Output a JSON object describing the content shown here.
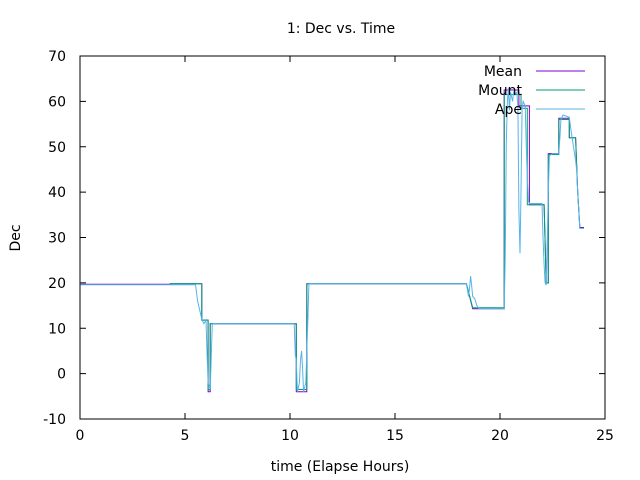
{
  "chart_data": {
    "type": "line",
    "title": "1: Dec vs. Time",
    "xlabel": "time (Elapse Hours)",
    "ylabel": "Dec",
    "xlim": [
      0,
      25
    ],
    "ylim": [
      -10,
      70
    ],
    "xticks": [
      0,
      5,
      10,
      15,
      20,
      25
    ],
    "yticks": [
      -10,
      0,
      10,
      20,
      30,
      40,
      50,
      60,
      70
    ],
    "grid": false,
    "legend_position": "top-right",
    "series": [
      {
        "name": "Mean",
        "color": "#7c00c8",
        "points": [
          [
            0,
            19.7
          ],
          [
            4.3,
            19.7
          ],
          [
            4.3,
            19.8
          ],
          [
            5.8,
            19.8
          ],
          [
            5.8,
            11.8
          ],
          [
            6.1,
            11.8
          ],
          [
            6.1,
            -4.0
          ],
          [
            6.2,
            -4.0
          ],
          [
            6.2,
            11.0
          ],
          [
            10.3,
            11.0
          ],
          [
            10.3,
            -4.0
          ],
          [
            10.8,
            -4.0
          ],
          [
            10.8,
            19.8
          ],
          [
            18.4,
            19.8
          ],
          [
            18.7,
            14.3
          ],
          [
            20.2,
            14.3
          ],
          [
            20.2,
            62.5
          ],
          [
            20.9,
            62.5
          ],
          [
            20.9,
            59.0
          ],
          [
            21.4,
            59.0
          ],
          [
            21.4,
            37.2
          ],
          [
            22.1,
            37.2
          ],
          [
            22.2,
            20.0
          ],
          [
            22.3,
            20.0
          ],
          [
            22.3,
            48.5
          ],
          [
            22.8,
            48.5
          ],
          [
            22.8,
            56.3
          ],
          [
            23.3,
            56.3
          ],
          [
            23.3,
            52.0
          ],
          [
            23.6,
            52.0
          ],
          [
            23.7,
            40.0
          ],
          [
            23.8,
            32.2
          ],
          [
            24.0,
            32.2
          ]
        ]
      },
      {
        "name": "Mount",
        "color": "#009e73",
        "points": [
          [
            4.3,
            19.8
          ],
          [
            5.8,
            19.8
          ],
          [
            5.8,
            11.8
          ],
          [
            6.1,
            11.8
          ],
          [
            6.1,
            -3.5
          ],
          [
            6.2,
            -3.5
          ],
          [
            6.2,
            11.0
          ],
          [
            10.3,
            11.0
          ],
          [
            10.3,
            -3.5
          ],
          [
            10.8,
            -3.5
          ],
          [
            10.8,
            19.8
          ],
          [
            18.4,
            19.8
          ],
          [
            18.7,
            14.5
          ],
          [
            20.2,
            14.5
          ],
          [
            20.2,
            61.5
          ],
          [
            21.0,
            61.5
          ],
          [
            21.0,
            58.5
          ],
          [
            21.3,
            58.5
          ],
          [
            21.3,
            37.2
          ],
          [
            22.1,
            37.2
          ],
          [
            22.2,
            20.0
          ],
          [
            22.3,
            20.0
          ],
          [
            22.3,
            48.3
          ],
          [
            22.8,
            48.3
          ],
          [
            22.8,
            56.0
          ],
          [
            23.3,
            56.0
          ],
          [
            23.3,
            52.0
          ],
          [
            23.6,
            52.0
          ],
          [
            23.7,
            40.0
          ],
          [
            23.8,
            32.4
          ]
        ]
      },
      {
        "name": "Ape",
        "color": "#56b4e9",
        "points": [
          [
            0,
            20.1
          ],
          [
            0.05,
            19.6
          ],
          [
            5.5,
            19.6
          ],
          [
            5.6,
            16.0
          ],
          [
            5.7,
            14.0
          ],
          [
            5.8,
            12.0
          ],
          [
            5.9,
            11.0
          ],
          [
            6.0,
            11.8
          ],
          [
            6.05,
            4.0
          ],
          [
            6.1,
            -2.0
          ],
          [
            6.2,
            -3.5
          ],
          [
            6.25,
            4.0
          ],
          [
            6.3,
            11.0
          ],
          [
            10.2,
            11.0
          ],
          [
            10.25,
            4.0
          ],
          [
            10.3,
            3.0
          ],
          [
            10.35,
            -4.0
          ],
          [
            10.45,
            -2.0
          ],
          [
            10.5,
            3.0
          ],
          [
            10.55,
            5.0
          ],
          [
            10.6,
            1.0
          ],
          [
            10.65,
            -4.0
          ],
          [
            10.75,
            -2.0
          ],
          [
            10.8,
            5.0
          ],
          [
            10.85,
            12.0
          ],
          [
            10.9,
            19.8
          ],
          [
            18.4,
            19.8
          ],
          [
            18.45,
            18.5
          ],
          [
            18.5,
            17.0
          ],
          [
            18.55,
            19.0
          ],
          [
            18.6,
            21.5
          ],
          [
            18.65,
            19.5
          ],
          [
            18.7,
            17.0
          ],
          [
            18.8,
            16.5
          ],
          [
            18.9,
            15.0
          ],
          [
            19.0,
            14.3
          ],
          [
            20.2,
            14.3
          ],
          [
            20.25,
            27.0
          ],
          [
            20.3,
            51.0
          ],
          [
            20.35,
            60.0
          ],
          [
            20.4,
            63.0
          ],
          [
            20.45,
            58.0
          ],
          [
            20.5,
            62.0
          ],
          [
            20.55,
            61.0
          ],
          [
            20.6,
            60.0
          ],
          [
            20.65,
            62.0
          ],
          [
            20.7,
            61.5
          ],
          [
            20.8,
            62.0
          ],
          [
            20.85,
            59.0
          ],
          [
            20.9,
            36.0
          ],
          [
            20.95,
            26.5
          ],
          [
            21.0,
            40.0
          ],
          [
            21.05,
            58.5
          ],
          [
            21.1,
            60.0
          ],
          [
            21.2,
            59.0
          ],
          [
            21.25,
            50.0
          ],
          [
            21.3,
            43.0
          ],
          [
            21.35,
            38.0
          ],
          [
            21.4,
            37.5
          ],
          [
            22.0,
            37.5
          ],
          [
            22.05,
            30.0
          ],
          [
            22.1,
            24.0
          ],
          [
            22.15,
            20.0
          ],
          [
            22.2,
            19.5
          ],
          [
            22.25,
            30.0
          ],
          [
            22.3,
            40.0
          ],
          [
            22.35,
            48.0
          ],
          [
            22.5,
            48.5
          ],
          [
            22.8,
            48.5
          ],
          [
            22.85,
            52.0
          ],
          [
            22.9,
            56.0
          ],
          [
            23.0,
            57.0
          ],
          [
            23.3,
            56.5
          ],
          [
            23.4,
            53.0
          ],
          [
            23.5,
            50.0
          ],
          [
            23.6,
            47.0
          ],
          [
            23.65,
            45.0
          ],
          [
            23.7,
            40.0
          ],
          [
            23.75,
            36.0
          ],
          [
            23.8,
            32.0
          ],
          [
            24.0,
            32.0
          ]
        ]
      }
    ]
  }
}
